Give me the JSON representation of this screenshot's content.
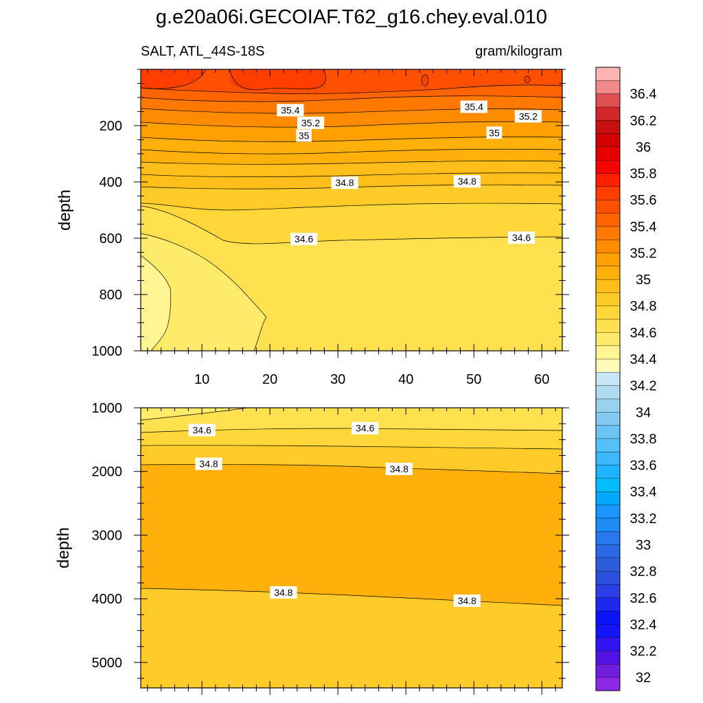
{
  "title": "g.e20a06i.GECOIAF.T62_g16.chey.eval.010",
  "subtitle_left": "SALT, ATL_44S-18S",
  "subtitle_right": "gram/kilogram",
  "chart_data": [
    {
      "type": "heatmap",
      "panel": "upper",
      "ylabel": "depth",
      "xlabel": "",
      "xlim": [
        1,
        63
      ],
      "ylim": [
        1000,
        0
      ],
      "x_tick_labels": [
        "10",
        "20",
        "30",
        "40",
        "50",
        "60"
      ],
      "y_tick_labels": [
        "200",
        "400",
        "600",
        "800",
        "1000"
      ],
      "contour_interval": 0.1,
      "levels_shaded": [
        35.6,
        35.5,
        35.4,
        35.3,
        35.2,
        35.1,
        35.0,
        34.9,
        34.8,
        34.7,
        34.6,
        34.5,
        34.4,
        34.3
      ],
      "level_colors": [
        "#FF3E00",
        "#FF5000",
        "#FF6400",
        "#FF7800",
        "#FF8C00",
        "#FFA000",
        "#FFB00A",
        "#FFBE19",
        "#FFCB28",
        "#FFD738",
        "#FFE04F",
        "#FFEB6A",
        "#FFF593",
        "#FFFCBA"
      ],
      "contour_labels": [
        {
          "text": "35.4",
          "x": 23,
          "y": 145
        },
        {
          "text": "35.2",
          "x": 26,
          "y": 190
        },
        {
          "text": "35",
          "x": 25,
          "y": 235
        },
        {
          "text": "34.8",
          "x": 31,
          "y": 403
        },
        {
          "text": "34.6",
          "x": 25,
          "y": 603
        },
        {
          "text": "35.4",
          "x": 50,
          "y": 133
        },
        {
          "text": "35.2",
          "x": 58,
          "y": 167
        },
        {
          "text": "35",
          "x": 53,
          "y": 225
        },
        {
          "text": "34.8",
          "x": 49,
          "y": 398
        },
        {
          "text": "34.6",
          "x": 57,
          "y": 598
        }
      ]
    },
    {
      "type": "heatmap",
      "panel": "lower",
      "ylabel": "depth",
      "xlabel": "",
      "xlim": [
        1,
        63
      ],
      "ylim": [
        5400,
        1000
      ],
      "y_tick_labels": [
        "1000",
        "2000",
        "3000",
        "4000",
        "5000"
      ],
      "levels_shaded": [
        34.8,
        34.7,
        34.6,
        34.5
      ],
      "level_colors": [
        "#FFB00A",
        "#FFCB28",
        "#FFD738",
        "#FFE04F"
      ],
      "contour_labels": [
        {
          "text": "34.6",
          "x": 10,
          "y": 1350
        },
        {
          "text": "34.6",
          "x": 34,
          "y": 1320
        },
        {
          "text": "34.8",
          "x": 11,
          "y": 1880
        },
        {
          "text": "34.8",
          "x": 39,
          "y": 1960
        },
        {
          "text": "34.8",
          "x": 22,
          "y": 3900
        },
        {
          "text": "34.8",
          "x": 49,
          "y": 4030
        }
      ]
    }
  ],
  "colorbar": {
    "labels": [
      "36.4",
      "36.2",
      "36",
      "35.8",
      "35.6",
      "35.4",
      "35.2",
      "35",
      "34.8",
      "34.6",
      "34.4",
      "34.2",
      "34",
      "33.8",
      "33.6",
      "33.4",
      "33.2",
      "33",
      "32.8",
      "32.6",
      "32.4",
      "32.2",
      "32"
    ],
    "colors": [
      "#FFB4B4",
      "#F08A8A",
      "#E05050",
      "#D02828",
      "#C81010",
      "#D20000",
      "#E60000",
      "#FA0000",
      "#FF1E00",
      "#FF3E00",
      "#FF5000",
      "#FF6400",
      "#FF7800",
      "#FF8C00",
      "#FFA000",
      "#FFB00A",
      "#FFBE19",
      "#FFCB28",
      "#FFD738",
      "#FFE04F",
      "#FFEB6A",
      "#FFF593",
      "#FFFCBA",
      "#C8E6F5",
      "#B0DCF2",
      "#9AD2EE",
      "#82C8F0",
      "#6CC4F5",
      "#55C0FA",
      "#3CB8FF",
      "#1EB4FF",
      "#00BEFF",
      "#00A8FF",
      "#1E96FF",
      "#1E8CF5",
      "#2878F0",
      "#2A6AE6",
      "#2C5CDC",
      "#2C4EDC",
      "#2A40E6",
      "#1E28F0",
      "#0A14FF",
      "#1414FF",
      "#3214F5",
      "#5014E6",
      "#6E1EDC",
      "#8C28E6"
    ]
  }
}
